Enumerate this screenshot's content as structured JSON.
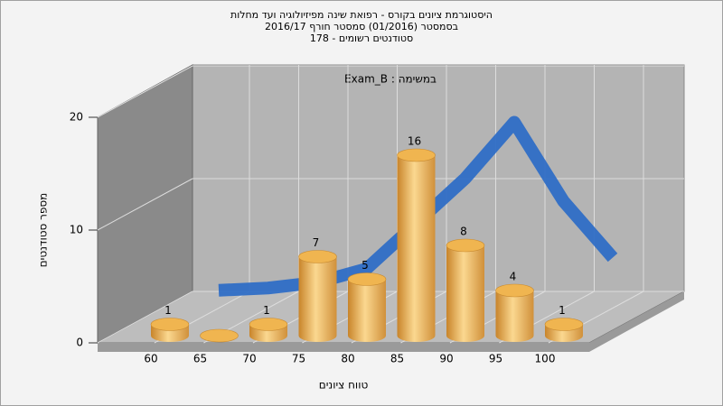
{
  "chart_data": {
    "type": "bar",
    "title": "היסטוגרמת ציונים בקורס - רפואת שינה מפיזיולוגיה ועד מחלות",
    "subtitle": "בסמסטר (01/2016) סמסטר חורף 2016/17",
    "subtitle2": "סטודנטים רשומים - 178",
    "annotation": "במשימה : Exam_B",
    "y_label": "מספר סטודנטים",
    "x_label": "טווח ציונים",
    "categories": [
      "60",
      "65",
      "70",
      "75",
      "80",
      "85",
      "90",
      "95",
      "100"
    ],
    "values": [
      1,
      0,
      1,
      7,
      5,
      16,
      8,
      4,
      1
    ],
    "color": "#e8a844",
    "curve": {
      "color": "#2f6ec6",
      "values": [
        0.1,
        0.3,
        0.8,
        2,
        6,
        10,
        15,
        8,
        3
      ]
    },
    "ylim": [
      0,
      20
    ],
    "yticks": [
      0,
      10,
      20
    ],
    "grid": true
  }
}
